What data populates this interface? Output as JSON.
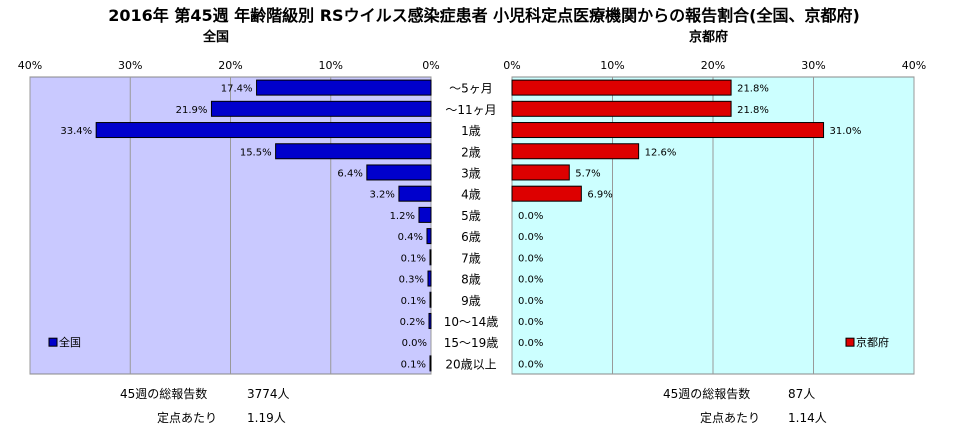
{
  "title": "2016年 第45週 年齢階級別 RSウイルス感染症患者 小児科定点医療機関からの報告割合(全国、京都府)",
  "chart_data": {
    "type": "bar",
    "orientation": "horizontal",
    "categories": [
      "〜5ヶ月",
      "〜11ヶ月",
      "1歳",
      "2歳",
      "3歳",
      "4歳",
      "5歳",
      "6歳",
      "7歳",
      "8歳",
      "9歳",
      "10〜14歳",
      "15〜19歳",
      "20歳以上"
    ],
    "x_ticks": [
      "40%",
      "30%",
      "20%",
      "10%",
      "0%"
    ],
    "x_ticks_right": [
      "0%",
      "10%",
      "20%",
      "30%",
      "40%"
    ],
    "xlim": [
      0,
      40
    ],
    "grid": true,
    "panels": [
      {
        "name": "全国",
        "legend": "全国",
        "legend_position": "bottom-left",
        "color": "#0000cc",
        "plot_bg": "#c9c9ff",
        "values": [
          17.4,
          21.9,
          33.4,
          15.5,
          6.4,
          3.2,
          1.2,
          0.4,
          0.1,
          0.3,
          0.1,
          0.2,
          0.0,
          0.1
        ],
        "labels": [
          "17.4%",
          "21.9%",
          "33.4%",
          "15.5%",
          "6.4%",
          "3.2%",
          "1.2%",
          "0.4%",
          "0.1%",
          "0.3%",
          "0.1%",
          "0.2%",
          "0.0%",
          "0.1%"
        ]
      },
      {
        "name": "京都府",
        "legend": "京都府",
        "legend_position": "bottom-right",
        "color": "#dd0000",
        "plot_bg": "#ccffff",
        "values": [
          21.8,
          21.8,
          31.0,
          12.6,
          5.7,
          6.9,
          0.0,
          0.0,
          0.0,
          0.0,
          0.0,
          0.0,
          0.0,
          0.0
        ],
        "labels": [
          "21.8%",
          "21.8%",
          "31.0%",
          "12.6%",
          "5.7%",
          "6.9%",
          "0.0%",
          "0.0%",
          "0.0%",
          "0.0%",
          "0.0%",
          "0.0%",
          "0.0%",
          "0.0%"
        ]
      }
    ]
  },
  "footer": {
    "national_total_label": "45週の総報告数",
    "national_total_value": "3774人",
    "national_per_site_label": "定点あたり",
    "national_per_site_value": "1.19人",
    "kyoto_total_label": "45週の総報告数",
    "kyoto_total_value": "87人",
    "kyoto_per_site_label": "定点あたり",
    "kyoto_per_site_value": "1.14人"
  }
}
